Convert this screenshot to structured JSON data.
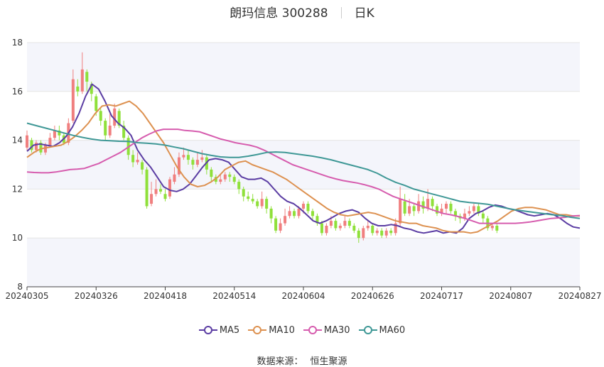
{
  "header": {
    "stock": "朗玛信息 300288",
    "period": "日K"
  },
  "source": {
    "label": "数据来源：",
    "value": "恒生聚源"
  },
  "colors": {
    "up": "#f07f7f",
    "down": "#8fe03a",
    "ma5": "#5b3da3",
    "ma10": "#dd9150",
    "ma30": "#d65cae",
    "ma60": "#3f9896",
    "band": "#f4f5fb",
    "grid": "#e5e5e5",
    "axis": "#444444"
  },
  "chart_data": {
    "type": "candlestick",
    "y_axis": {
      "min": 8,
      "max": 18,
      "ticks": [
        8,
        10,
        12,
        14,
        16,
        18
      ]
    },
    "x_axis": {
      "ticks": [
        {
          "i": 0,
          "label": "20240305"
        },
        {
          "i": 15,
          "label": "20240326"
        },
        {
          "i": 30,
          "label": "20240418"
        },
        {
          "i": 45,
          "label": "20240514"
        },
        {
          "i": 60,
          "label": "20240604"
        },
        {
          "i": 75,
          "label": "20240626"
        },
        {
          "i": 90,
          "label": "20240717"
        },
        {
          "i": 105,
          "label": "20240807"
        },
        {
          "i": 120,
          "label": "20240827"
        }
      ]
    },
    "legend": [
      {
        "key": "ma5",
        "label": "MA5",
        "color": "#5b3da3"
      },
      {
        "key": "ma10",
        "label": "MA10",
        "color": "#dd9150"
      },
      {
        "key": "ma30",
        "label": "MA30",
        "color": "#d65cae"
      },
      {
        "key": "ma60",
        "label": "MA60",
        "color": "#3f9896"
      }
    ],
    "candles": [
      [
        13.7,
        14.2,
        14.4,
        13.6
      ],
      [
        14.0,
        13.6,
        14.1,
        13.5
      ],
      [
        13.6,
        13.9,
        14.0,
        13.5
      ],
      [
        13.9,
        13.5,
        14.0,
        13.4
      ],
      [
        13.5,
        13.8,
        13.9,
        13.4
      ],
      [
        13.8,
        14.1,
        14.3,
        13.7
      ],
      [
        14.1,
        14.4,
        14.6,
        14.0
      ],
      [
        14.4,
        14.2,
        14.6,
        14.0
      ],
      [
        14.2,
        13.9,
        14.3,
        13.8
      ],
      [
        13.9,
        14.7,
        14.9,
        13.8
      ],
      [
        14.8,
        16.5,
        16.9,
        14.7
      ],
      [
        16.2,
        16.0,
        16.5,
        15.8
      ],
      [
        16.0,
        16.9,
        17.6,
        15.9
      ],
      [
        16.8,
        16.4,
        16.9,
        16.0
      ],
      [
        16.3,
        15.9,
        16.4,
        15.6
      ],
      [
        15.8,
        15.2,
        15.9,
        15.0
      ],
      [
        15.2,
        14.8,
        15.3,
        14.6
      ],
      [
        14.8,
        14.2,
        14.9,
        14.0
      ],
      [
        14.2,
        14.6,
        15.1,
        14.1
      ],
      [
        14.6,
        15.3,
        15.5,
        14.5
      ],
      [
        15.2,
        14.6,
        15.3,
        14.5
      ],
      [
        14.6,
        14.1,
        14.8,
        14.0
      ],
      [
        14.1,
        13.4,
        14.2,
        13.2
      ],
      [
        13.4,
        13.1,
        13.6,
        12.9
      ],
      [
        13.1,
        13.2,
        13.5,
        13.0
      ],
      [
        13.1,
        12.8,
        13.2,
        12.6
      ],
      [
        12.8,
        11.3,
        12.9,
        11.2
      ],
      [
        11.4,
        11.8,
        12.3,
        11.3
      ],
      [
        11.8,
        12.0,
        12.4,
        11.7
      ],
      [
        12.0,
        11.9,
        12.2,
        11.8
      ],
      [
        11.8,
        11.6,
        12.0,
        11.5
      ],
      [
        11.7,
        12.4,
        12.5,
        11.6
      ],
      [
        12.3,
        12.6,
        12.9,
        12.2
      ],
      [
        12.6,
        13.3,
        13.5,
        12.5
      ],
      [
        13.3,
        13.4,
        13.7,
        13.2
      ],
      [
        13.4,
        13.2,
        13.6,
        13.0
      ],
      [
        13.2,
        13.0,
        13.3,
        12.8
      ],
      [
        13.0,
        13.2,
        13.5,
        12.9
      ],
      [
        13.2,
        13.3,
        13.6,
        13.1
      ],
      [
        13.3,
        12.8,
        13.4,
        12.6
      ],
      [
        12.8,
        12.5,
        12.9,
        12.3
      ],
      [
        12.5,
        12.3,
        12.6,
        12.2
      ],
      [
        12.3,
        12.4,
        12.6,
        12.2
      ],
      [
        12.4,
        12.6,
        12.7,
        12.3
      ],
      [
        12.6,
        12.5,
        12.7,
        12.3
      ],
      [
        12.5,
        12.3,
        12.6,
        12.2
      ],
      [
        12.3,
        12.0,
        12.4,
        11.8
      ],
      [
        12.0,
        11.7,
        12.1,
        11.5
      ],
      [
        11.7,
        11.6,
        11.9,
        11.5
      ],
      [
        11.6,
        11.5,
        11.8,
        11.4
      ],
      [
        11.5,
        11.3,
        11.6,
        11.2
      ],
      [
        11.3,
        11.6,
        11.9,
        11.2
      ],
      [
        11.6,
        11.2,
        11.7,
        11.0
      ],
      [
        11.2,
        10.8,
        11.3,
        10.6
      ],
      [
        10.8,
        10.3,
        10.9,
        10.2
      ],
      [
        10.3,
        10.6,
        10.8,
        10.2
      ],
      [
        10.6,
        10.9,
        11.2,
        10.5
      ],
      [
        10.9,
        11.1,
        11.3,
        10.8
      ],
      [
        11.1,
        10.9,
        11.2,
        10.8
      ],
      [
        10.9,
        11.2,
        11.3,
        10.8
      ],
      [
        11.2,
        11.4,
        11.5,
        11.0
      ],
      [
        11.4,
        11.1,
        11.5,
        11.0
      ],
      [
        11.1,
        10.9,
        11.2,
        10.7
      ],
      [
        10.9,
        10.6,
        11.0,
        10.5
      ],
      [
        10.6,
        10.2,
        10.7,
        10.1
      ],
      [
        10.2,
        10.5,
        10.6,
        10.1
      ],
      [
        10.5,
        10.7,
        10.9,
        10.4
      ],
      [
        10.7,
        10.4,
        10.8,
        10.3
      ],
      [
        10.4,
        10.5,
        10.6,
        10.3
      ],
      [
        10.5,
        10.7,
        10.9,
        10.4
      ],
      [
        10.7,
        10.5,
        10.8,
        10.4
      ],
      [
        10.5,
        10.3,
        10.6,
        10.2
      ],
      [
        10.3,
        10.0,
        10.4,
        9.8
      ],
      [
        10.0,
        10.4,
        10.5,
        9.9
      ],
      [
        10.4,
        10.5,
        10.7,
        10.3
      ],
      [
        10.5,
        10.2,
        10.6,
        10.1
      ],
      [
        10.2,
        10.3,
        10.4,
        10.1
      ],
      [
        10.3,
        10.1,
        10.4,
        10.0
      ],
      [
        10.1,
        10.3,
        10.4,
        10.0
      ],
      [
        10.3,
        10.2,
        10.4,
        10.1
      ],
      [
        10.2,
        10.6,
        10.8,
        10.1
      ],
      [
        10.6,
        11.6,
        12.1,
        10.5
      ],
      [
        11.5,
        11.0,
        11.8,
        10.9
      ],
      [
        11.0,
        11.3,
        11.6,
        10.9
      ],
      [
        11.3,
        11.1,
        11.4,
        10.9
      ],
      [
        11.1,
        11.5,
        11.8,
        11.0
      ],
      [
        11.5,
        11.2,
        11.7,
        11.0
      ],
      [
        11.2,
        11.6,
        12.0,
        11.1
      ],
      [
        11.6,
        11.3,
        11.7,
        11.1
      ],
      [
        11.3,
        11.0,
        11.4,
        10.9
      ],
      [
        11.0,
        11.2,
        11.4,
        10.9
      ],
      [
        11.2,
        11.4,
        11.5,
        11.0
      ],
      [
        11.4,
        11.1,
        11.5,
        11.0
      ],
      [
        11.1,
        10.9,
        11.2,
        10.7
      ],
      [
        10.9,
        10.8,
        11.0,
        10.6
      ],
      [
        10.8,
        11.0,
        11.2,
        10.7
      ],
      [
        11.0,
        11.1,
        11.3,
        10.9
      ],
      [
        11.1,
        11.3,
        11.4,
        11.0
      ],
      [
        11.3,
        11.0,
        11.4,
        10.9
      ],
      [
        11.0,
        10.8,
        11.1,
        10.6
      ],
      [
        10.8,
        10.4,
        10.9,
        10.3
      ],
      [
        10.4,
        10.5,
        10.6,
        10.3
      ],
      [
        10.5,
        10.3,
        10.6,
        10.2
      ]
    ],
    "ma5": [
      13.55,
      13.8,
      13.85,
      13.8,
      13.75,
      13.9,
      14.15,
      14.55,
      15.1,
      15.8,
      16.3,
      16.1,
      15.6,
      15.0,
      14.7,
      14.5,
      14.2,
      13.6,
      13.2,
      12.9,
      12.5,
      12.1,
      11.95,
      11.9,
      12.0,
      12.2,
      12.55,
      12.9,
      13.2,
      13.25,
      13.2,
      13.1,
      12.8,
      12.5,
      12.4,
      12.4,
      12.45,
      12.3,
      12.0,
      11.7,
      11.5,
      11.4,
      11.2,
      10.95,
      10.7,
      10.6,
      10.7,
      10.85,
      11.0,
      11.1,
      11.15,
      11.05,
      10.8,
      10.6,
      10.5,
      10.5,
      10.55,
      10.5,
      10.4,
      10.35,
      10.25,
      10.2,
      10.25,
      10.3,
      10.2,
      10.25,
      10.2,
      10.4,
      10.8,
      11.0,
      11.1,
      11.25,
      11.35,
      11.3,
      11.2,
      11.15,
      11.05,
      10.95,
      10.9,
      10.95,
      11.0,
      10.95,
      10.8,
      10.6,
      10.45,
      10.4
    ],
    "ma10": [
      13.3,
      13.5,
      13.65,
      13.7,
      13.75,
      13.8,
      13.95,
      14.15,
      14.4,
      14.7,
      15.1,
      15.4,
      15.45,
      15.4,
      15.5,
      15.6,
      15.4,
      15.1,
      14.7,
      14.3,
      13.9,
      13.4,
      12.9,
      12.5,
      12.2,
      12.1,
      12.15,
      12.3,
      12.5,
      12.8,
      12.95,
      13.1,
      13.15,
      13.0,
      12.9,
      12.8,
      12.7,
      12.55,
      12.4,
      12.2,
      12.0,
      11.8,
      11.6,
      11.4,
      11.2,
      11.05,
      10.95,
      10.9,
      10.95,
      11.0,
      11.05,
      11.0,
      10.9,
      10.8,
      10.7,
      10.65,
      10.6,
      10.6,
      10.5,
      10.45,
      10.4,
      10.3,
      10.25,
      10.25,
      10.25,
      10.2,
      10.25,
      10.4,
      10.55,
      10.7,
      10.9,
      11.1,
      11.2,
      11.25,
      11.25,
      11.2,
      11.15,
      11.05,
      10.95,
      10.95,
      10.9,
      10.9
    ],
    "ma30": [
      12.7,
      12.68,
      12.67,
      12.67,
      12.7,
      12.75,
      12.8,
      12.82,
      12.85,
      12.95,
      13.05,
      13.2,
      13.35,
      13.5,
      13.7,
      13.9,
      14.1,
      14.25,
      14.38,
      14.45,
      14.45,
      14.45,
      14.4,
      14.38,
      14.35,
      14.25,
      14.15,
      14.05,
      13.98,
      13.9,
      13.85,
      13.8,
      13.72,
      13.6,
      13.45,
      13.3,
      13.15,
      13.0,
      12.9,
      12.8,
      12.7,
      12.6,
      12.5,
      12.42,
      12.35,
      12.3,
      12.25,
      12.18,
      12.1,
      12.0,
      11.85,
      11.7,
      11.6,
      11.5,
      11.4,
      11.3,
      11.2,
      11.1,
      11.0,
      10.95,
      10.88,
      10.8,
      10.7,
      10.6,
      10.6,
      10.6,
      10.6,
      10.6,
      10.6,
      10.62,
      10.65,
      10.7,
      10.75,
      10.8,
      10.82,
      10.85,
      10.9,
      10.92
    ],
    "ma60": [
      14.7,
      14.6,
      14.5,
      14.4,
      14.3,
      14.2,
      14.12,
      14.05,
      14.0,
      13.98,
      13.96,
      13.95,
      13.9,
      13.88,
      13.85,
      13.8,
      13.72,
      13.65,
      13.55,
      13.45,
      13.38,
      13.32,
      13.3,
      13.3,
      13.35,
      13.42,
      13.5,
      13.52,
      13.5,
      13.45,
      13.4,
      13.35,
      13.28,
      13.2,
      13.1,
      13.0,
      12.9,
      12.8,
      12.65,
      12.45,
      12.28,
      12.15,
      12.0,
      11.9,
      11.8,
      11.7,
      11.6,
      11.5,
      11.45,
      11.42,
      11.38,
      11.3,
      11.22,
      11.15,
      11.1,
      11.05,
      11.0,
      10.95,
      10.92,
      10.85,
      10.8
    ]
  }
}
